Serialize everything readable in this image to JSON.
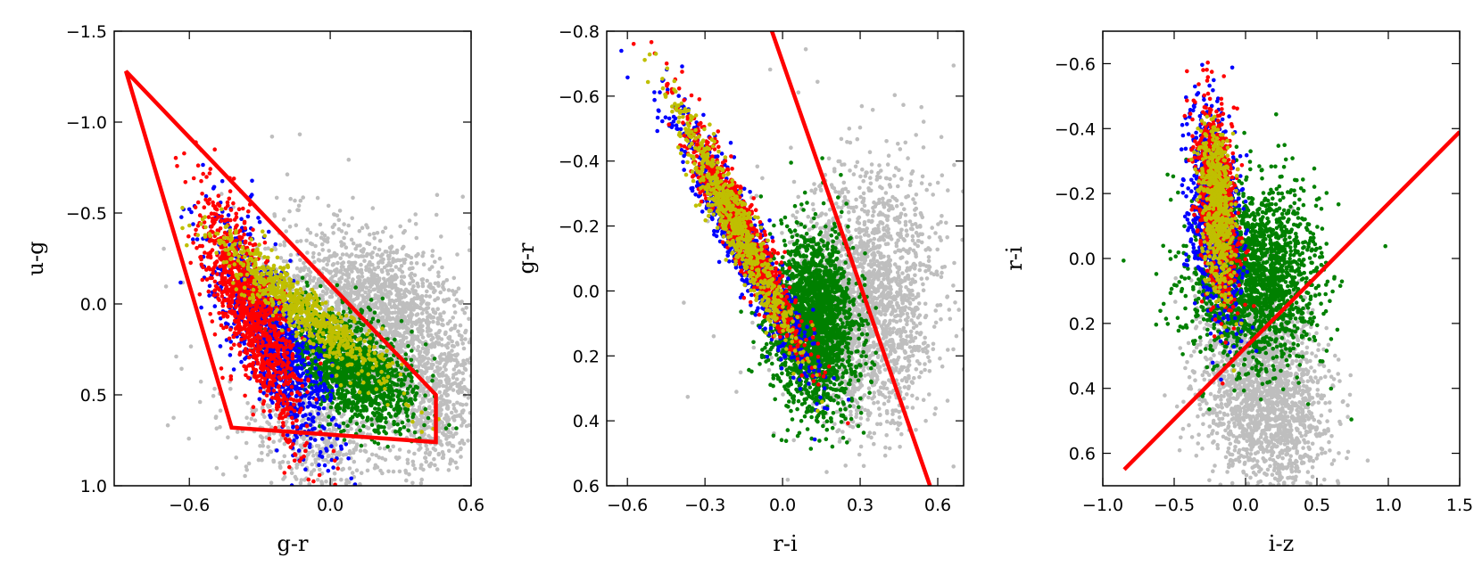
{
  "chart_data": [
    {
      "type": "scatter",
      "title": "",
      "xlabel": "g-r",
      "ylabel": "u-g",
      "xlim": [
        -0.92,
        0.6
      ],
      "ylim": [
        1.0,
        -1.5
      ],
      "y_inverted": true,
      "grid": false,
      "xticks": [
        -0.6,
        0.0,
        0.6
      ],
      "xtick_labels": [
        "−0.6",
        "0.0",
        "0.6"
      ],
      "yticks": [
        -1.5,
        -1.0,
        -0.5,
        0.0,
        0.5,
        1.0
      ],
      "ytick_labels": [
        "−1.5",
        "−1.0",
        "−0.5",
        "0.0",
        "0.5",
        "1.0"
      ],
      "selection_polygon": [
        [
          -0.87,
          -1.28
        ],
        [
          0.45,
          0.5
        ],
        [
          0.45,
          0.76
        ],
        [
          -0.42,
          0.68
        ]
      ],
      "series": [
        {
          "color": "#bebebe",
          "clouds": [
            {
              "n": 1800,
              "c": [
                0.18,
                0.05
              ],
              "s": [
                0.2,
                0.22
              ],
              "r": 0.3
            },
            {
              "n": 500,
              "c": [
                0.45,
                0.55
              ],
              "s": [
                0.1,
                0.2
              ],
              "r": 0
            },
            {
              "n": 600,
              "c": [
                -0.05,
                0.7
              ],
              "s": [
                0.2,
                0.18
              ],
              "r": 0.2
            },
            {
              "n": 60,
              "c": [
                0.0,
                0.0
              ],
              "s": [
                0.5,
                0.5
              ],
              "r": 0
            }
          ]
        },
        {
          "color": "#008000",
          "clouds": [
            {
              "n": 1500,
              "c": [
                0.08,
                0.35
              ],
              "s": [
                0.14,
                0.16
              ],
              "r": 0.55
            }
          ]
        },
        {
          "color": "#0000ff",
          "clouds": [
            {
              "n": 1100,
              "c": [
                -0.25,
                0.18
              ],
              "s": [
                0.12,
                0.3
              ],
              "r": 0.75
            }
          ]
        },
        {
          "color": "#ff0000",
          "clouds": [
            {
              "n": 1100,
              "c": [
                -0.33,
                0.05
              ],
              "s": [
                0.11,
                0.33
              ],
              "r": 0.8
            }
          ]
        },
        {
          "color": "#bfbf00",
          "clouds": [
            {
              "n": 700,
              "c": [
                -0.12,
                0.03
              ],
              "s": [
                0.18,
                0.2
              ],
              "r": 0.92
            }
          ]
        }
      ]
    },
    {
      "type": "scatter",
      "title": "",
      "xlabel": "r-i",
      "ylabel": "g-r",
      "xlim": [
        -0.68,
        0.7
      ],
      "ylim": [
        0.6,
        -0.8
      ],
      "y_inverted": true,
      "grid": false,
      "xticks": [
        -0.6,
        -0.3,
        0.0,
        0.3,
        0.6
      ],
      "xtick_labels": [
        "−0.6",
        "−0.3",
        "0.0",
        "0.3",
        "0.6"
      ],
      "yticks": [
        -0.8,
        -0.6,
        -0.4,
        -0.2,
        0.0,
        0.2,
        0.4,
        0.6
      ],
      "ytick_labels": [
        "−0.8",
        "−0.6",
        "−0.4",
        "−0.2",
        "0.0",
        "0.2",
        "0.4",
        "0.6"
      ],
      "selection_line": [
        [
          -0.05,
          -0.82
        ],
        [
          0.57,
          0.6
        ]
      ],
      "series": [
        {
          "color": "#bebebe",
          "clouds": [
            {
              "n": 1800,
              "c": [
                0.3,
                0.05
              ],
              "s": [
                0.13,
                0.18
              ],
              "r": 0.1
            },
            {
              "n": 300,
              "c": [
                0.45,
                -0.1
              ],
              "s": [
                0.1,
                0.2
              ],
              "r": 0
            },
            {
              "n": 40,
              "c": [
                0.2,
                0.0
              ],
              "s": [
                0.35,
                0.4
              ],
              "r": 0
            }
          ]
        },
        {
          "color": "#008000",
          "clouds": [
            {
              "n": 2200,
              "c": [
                0.12,
                0.1
              ],
              "s": [
                0.08,
                0.13
              ],
              "r": 0.1
            }
          ]
        },
        {
          "color": "#0000ff",
          "clouds": [
            {
              "n": 1000,
              "c": [
                -0.15,
                -0.15
              ],
              "s": [
                0.13,
                0.2
              ],
              "r": 0.94
            }
          ]
        },
        {
          "color": "#ff0000",
          "clouds": [
            {
              "n": 900,
              "c": [
                -0.15,
                -0.18
              ],
              "s": [
                0.12,
                0.19
              ],
              "r": 0.95
            }
          ]
        },
        {
          "color": "#bfbf00",
          "clouds": [
            {
              "n": 700,
              "c": [
                -0.18,
                -0.2
              ],
              "s": [
                0.12,
                0.19
              ],
              "r": 0.96
            }
          ]
        }
      ]
    },
    {
      "type": "scatter",
      "title": "",
      "xlabel": "i-z",
      "ylabel": "r-i",
      "xlim": [
        -1.0,
        1.5
      ],
      "ylim": [
        0.7,
        -0.7
      ],
      "y_inverted": true,
      "grid": false,
      "xticks": [
        -1.0,
        -0.5,
        0.0,
        0.5,
        1.0,
        1.5
      ],
      "xtick_labels": [
        "−1.0",
        "−0.5",
        "0.0",
        "0.5",
        "1.0",
        "1.5"
      ],
      "yticks": [
        -0.6,
        -0.4,
        -0.2,
        0.0,
        0.2,
        0.4,
        0.6
      ],
      "ytick_labels": [
        "−0.6",
        "−0.4",
        "−0.2",
        "0.0",
        "0.2",
        "0.4",
        "0.6"
      ],
      "selection_line": [
        [
          -0.85,
          0.65
        ],
        [
          1.5,
          -0.39
        ]
      ],
      "series": [
        {
          "color": "#bebebe",
          "clouds": [
            {
              "n": 1800,
              "c": [
                0.1,
                0.38
              ],
              "s": [
                0.22,
                0.16
              ],
              "r": 0.2
            },
            {
              "n": 200,
              "c": [
                0.3,
                0.55
              ],
              "s": [
                0.15,
                0.1
              ],
              "r": 0
            }
          ]
        },
        {
          "color": "#008000",
          "clouds": [
            {
              "n": 1900,
              "c": [
                0.05,
                0.05
              ],
              "s": [
                0.22,
                0.14
              ],
              "r": 0.0
            }
          ]
        },
        {
          "color": "#0000ff",
          "clouds": [
            {
              "n": 900,
              "c": [
                -0.22,
                -0.15
              ],
              "s": [
                0.09,
                0.16
              ],
              "r": 0.3
            }
          ]
        },
        {
          "color": "#ff0000",
          "clouds": [
            {
              "n": 800,
              "c": [
                -0.2,
                -0.17
              ],
              "s": [
                0.07,
                0.15
              ],
              "r": 0.35
            }
          ]
        },
        {
          "color": "#bfbf00",
          "clouds": [
            {
              "n": 600,
              "c": [
                -0.2,
                -0.15
              ],
              "s": [
                0.06,
                0.13
              ],
              "r": 0.3
            }
          ]
        }
      ]
    }
  ]
}
